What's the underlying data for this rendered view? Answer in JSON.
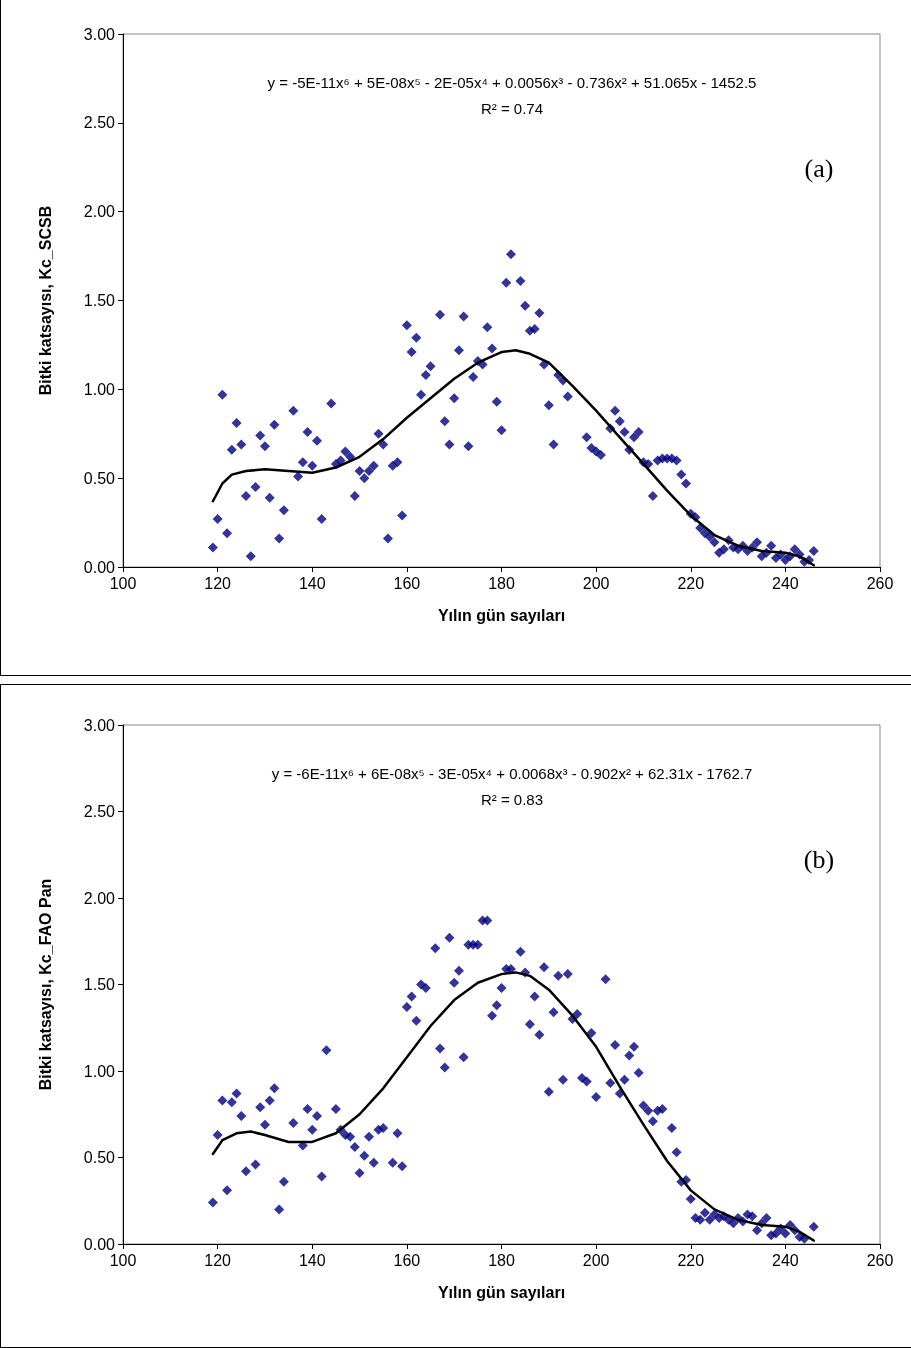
{
  "chart_data": [
    {
      "type": "scatter",
      "xlabel": "Yılın gün sayıları",
      "ylabel": "Bitki katsayısı, Kc_SCSB",
      "annotations": [
        "y = -5E-11x⁶ + 5E-08x⁵ - 2E-05x⁴ + 0.0056x³ - 0.736x² + 51.065x - 1452.5",
        "R² = 0.74",
        "(a)"
      ],
      "xlim": [
        100,
        260
      ],
      "xticks": [
        100,
        120,
        140,
        160,
        180,
        200,
        220,
        240,
        260
      ],
      "ylim": [
        0,
        3
      ],
      "yticks": [
        {
          "value": 0,
          "label": "0.00"
        },
        {
          "value": 0.5,
          "label": "0.50"
        },
        {
          "value": 1,
          "label": "1.00"
        },
        {
          "value": 1.5,
          "label": "1.50"
        },
        {
          "value": 2,
          "label": "2.00"
        },
        {
          "value": 2.5,
          "label": "2.50"
        },
        {
          "value": 3,
          "label": "3.00"
        }
      ],
      "grid": false,
      "series": [
        {
          "marker": "diamond",
          "color": "#000080",
          "x": [
            119,
            120,
            121,
            122,
            123,
            124,
            125,
            126,
            127,
            128,
            129,
            130,
            131,
            132,
            133,
            134,
            136,
            137,
            138,
            139,
            140,
            141,
            142,
            144,
            145,
            146,
            147,
            148,
            149,
            150,
            151,
            152,
            153,
            154,
            155,
            156,
            157,
            158,
            159,
            160,
            161,
            162,
            163,
            164,
            165,
            167,
            168,
            169,
            170,
            171,
            172,
            173,
            174,
            175,
            176,
            177,
            178,
            179,
            180,
            181,
            182,
            184,
            185,
            186,
            187,
            188,
            189,
            190,
            191,
            192,
            193,
            194,
            198,
            199,
            200,
            201,
            203,
            204,
            205,
            206,
            207,
            208,
            209,
            210,
            211,
            212,
            213,
            214,
            215,
            216,
            217,
            218,
            219,
            220,
            221,
            222,
            223,
            224,
            225,
            226,
            227,
            228,
            229,
            230,
            231,
            232,
            233,
            234,
            235,
            236,
            237,
            238,
            239,
            240,
            241,
            242,
            243,
            244,
            245,
            246
          ],
          "values": [
            0.11,
            0.27,
            0.97,
            0.19,
            0.66,
            0.81,
            0.69,
            0.4,
            0.06,
            0.45,
            0.74,
            0.68,
            0.39,
            0.8,
            0.16,
            0.32,
            0.88,
            0.51,
            0.59,
            0.76,
            0.57,
            0.71,
            0.27,
            0.92,
            0.58,
            0.6,
            0.65,
            0.62,
            0.4,
            0.54,
            0.5,
            0.54,
            0.57,
            0.75,
            0.69,
            0.16,
            0.57,
            0.59,
            0.29,
            1.36,
            1.21,
            1.29,
            0.97,
            1.08,
            1.13,
            1.42,
            0.82,
            0.69,
            0.95,
            1.22,
            1.41,
            0.68,
            1.07,
            1.16,
            1.14,
            1.35,
            1.23,
            0.93,
            0.77,
            1.6,
            1.76,
            1.61,
            1.47,
            1.33,
            1.34,
            1.43,
            1.14,
            0.91,
            0.69,
            1.08,
            1.05,
            0.96,
            0.73,
            0.67,
            0.65,
            0.63,
            0.78,
            0.88,
            0.82,
            0.76,
            0.66,
            0.73,
            0.76,
            0.59,
            0.58,
            0.4,
            0.6,
            0.61,
            0.61,
            0.61,
            0.6,
            0.52,
            0.47,
            0.3,
            0.28,
            0.22,
            0.19,
            0.17,
            0.14,
            0.08,
            0.1,
            0.15,
            0.11,
            0.1,
            0.12,
            0.09,
            0.11,
            0.14,
            0.06,
            0.08,
            0.12,
            0.05,
            0.07,
            0.04,
            0.06,
            0.1,
            0.07,
            0.03,
            0.04,
            0.09
          ]
        },
        {
          "type": "line",
          "marker": "none",
          "line_style": "solid",
          "color": "#000000",
          "x": [
            119,
            121,
            123,
            126,
            130,
            135,
            140,
            145,
            150,
            155,
            160,
            165,
            170,
            175,
            180,
            183,
            186,
            190,
            195,
            200,
            205,
            210,
            215,
            220,
            225,
            230,
            235,
            240,
            243,
            246
          ],
          "values": [
            0.37,
            0.47,
            0.52,
            0.54,
            0.55,
            0.54,
            0.53,
            0.56,
            0.62,
            0.72,
            0.84,
            0.95,
            1.06,
            1.15,
            1.21,
            1.22,
            1.2,
            1.15,
            1.02,
            0.88,
            0.73,
            0.58,
            0.43,
            0.29,
            0.18,
            0.12,
            0.09,
            0.08,
            0.06,
            0.01
          ]
        }
      ]
    },
    {
      "type": "scatter",
      "xlabel": "Yılın gün sayıları",
      "ylabel": "Bitki katsayısı, Kc_FAO Pan",
      "annotations": [
        "y = -6E-11x⁶ + 6E-08x⁵ - 3E-05x⁴ + 0.0068x³ - 0.902x² + 62.31x - 1762.7",
        "R² = 0.83",
        "(b)"
      ],
      "xlim": [
        100,
        260
      ],
      "xticks": [
        100,
        120,
        140,
        160,
        180,
        200,
        220,
        240,
        260
      ],
      "ylim": [
        0,
        3
      ],
      "yticks": [
        {
          "value": 0,
          "label": "0.00"
        },
        {
          "value": 0.5,
          "label": "0.50"
        },
        {
          "value": 1,
          "label": "1.00"
        },
        {
          "value": 1.5,
          "label": "1.50"
        },
        {
          "value": 2,
          "label": "2.00"
        },
        {
          "value": 2.5,
          "label": "2.50"
        },
        {
          "value": 3,
          "label": "3.00"
        }
      ],
      "grid": false,
      "series": [
        {
          "marker": "diamond",
          "color": "#000080",
          "x": [
            119,
            120,
            121,
            122,
            123,
            124,
            125,
            126,
            128,
            129,
            130,
            131,
            132,
            133,
            134,
            136,
            138,
            139,
            140,
            141,
            142,
            143,
            145,
            146,
            147,
            148,
            149,
            150,
            151,
            152,
            153,
            154,
            155,
            157,
            158,
            159,
            160,
            161,
            162,
            163,
            164,
            166,
            167,
            168,
            169,
            170,
            171,
            172,
            173,
            174,
            175,
            176,
            177,
            178,
            179,
            180,
            181,
            182,
            184,
            185,
            186,
            187,
            188,
            189,
            190,
            191,
            192,
            193,
            194,
            195,
            196,
            197,
            198,
            199,
            200,
            202,
            203,
            204,
            205,
            206,
            207,
            208,
            209,
            210,
            211,
            212,
            213,
            214,
            216,
            217,
            218,
            219,
            220,
            221,
            222,
            223,
            224,
            225,
            226,
            227,
            228,
            229,
            230,
            231,
            232,
            233,
            234,
            235,
            236,
            237,
            238,
            239,
            240,
            241,
            242,
            243,
            244,
            246
          ],
          "values": [
            0.24,
            0.63,
            0.83,
            0.31,
            0.82,
            0.87,
            0.74,
            0.42,
            0.46,
            0.79,
            0.69,
            0.83,
            0.9,
            0.2,
            0.36,
            0.7,
            0.57,
            0.78,
            0.66,
            0.74,
            0.39,
            1.12,
            0.78,
            0.66,
            0.63,
            0.62,
            0.56,
            0.41,
            0.51,
            0.62,
            0.47,
            0.66,
            0.67,
            0.47,
            0.64,
            0.45,
            1.37,
            1.43,
            1.29,
            1.5,
            1.48,
            1.71,
            1.13,
            1.02,
            1.77,
            1.51,
            1.58,
            1.08,
            1.73,
            1.73,
            1.73,
            1.87,
            1.87,
            1.32,
            1.38,
            1.48,
            1.59,
            1.59,
            1.69,
            1.57,
            1.27,
            1.43,
            1.21,
            1.6,
            0.88,
            1.34,
            1.55,
            0.95,
            1.56,
            1.3,
            1.33,
            0.96,
            0.94,
            1.22,
            0.85,
            1.53,
            0.93,
            1.15,
            0.87,
            0.95,
            1.09,
            1.14,
            0.99,
            0.8,
            0.77,
            0.71,
            0.77,
            0.78,
            0.67,
            0.53,
            0.36,
            0.37,
            0.26,
            0.15,
            0.14,
            0.18,
            0.14,
            0.17,
            0.15,
            0.16,
            0.14,
            0.12,
            0.15,
            0.13,
            0.17,
            0.16,
            0.08,
            0.12,
            0.15,
            0.05,
            0.06,
            0.09,
            0.06,
            0.11,
            0.08,
            0.04,
            0.03,
            0.1
          ]
        },
        {
          "type": "line",
          "marker": "none",
          "line_style": "solid",
          "color": "#000000",
          "x": [
            119,
            121,
            124,
            127,
            130,
            135,
            140,
            145,
            150,
            155,
            160,
            165,
            170,
            175,
            180,
            183,
            186,
            190,
            195,
            200,
            205,
            210,
            215,
            220,
            225,
            230,
            235,
            240,
            243,
            246
          ],
          "values": [
            0.52,
            0.6,
            0.64,
            0.65,
            0.63,
            0.59,
            0.59,
            0.64,
            0.75,
            0.9,
            1.08,
            1.26,
            1.41,
            1.51,
            1.56,
            1.57,
            1.55,
            1.47,
            1.32,
            1.14,
            0.91,
            0.69,
            0.48,
            0.31,
            0.2,
            0.14,
            0.11,
            0.1,
            0.07,
            0.02
          ]
        }
      ]
    }
  ]
}
